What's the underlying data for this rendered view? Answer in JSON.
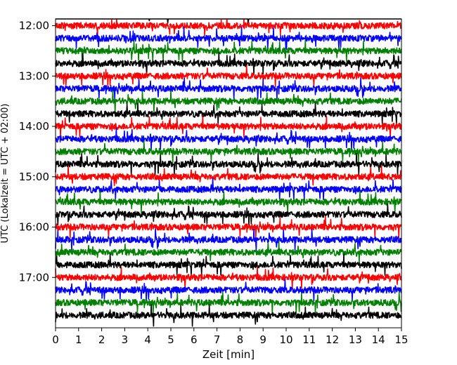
{
  "chart_data": {
    "type": "line",
    "title": "",
    "xlabel": "Zeit  [min]",
    "ylabel": "UTC (Lokalzeit = UTC + 02:00)",
    "xlim": [
      0,
      15
    ],
    "x_ticks": [
      0,
      1,
      2,
      3,
      4,
      5,
      6,
      7,
      8,
      9,
      10,
      11,
      12,
      13,
      14,
      15
    ],
    "y_ticks": [
      "12:00",
      "13:00",
      "14:00",
      "15:00",
      "16:00",
      "17:00"
    ],
    "ylim": [
      "11:52",
      "18:00"
    ],
    "trace_interval_min": 15,
    "trace_colors": [
      "#000000",
      "#ff0000",
      "#0000ff",
      "#008000"
    ],
    "traces_start_utc": "11:45",
    "traces_end_utc": "17:45",
    "grid": false,
    "legend": "none"
  }
}
